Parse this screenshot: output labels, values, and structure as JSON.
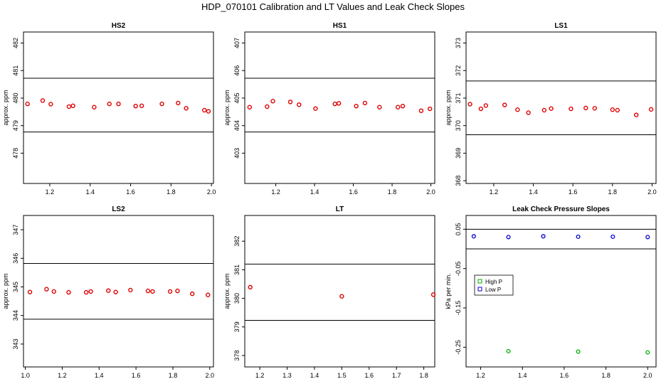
{
  "figure_title": "HDP_070101 Calibration and LT Values and Leak Check Slopes",
  "colors": {
    "points": "#e00000",
    "high_p": "#00b000",
    "low_p": "#0000cc",
    "lines": "#000000"
  },
  "chart_data": [
    {
      "type": "scatter",
      "title": "HS2",
      "ylabel": "approx. ppm",
      "xlim": [
        1.07,
        2.01
      ],
      "ylim": [
        476.9,
        482.4
      ],
      "xticks": [
        1.2,
        1.4,
        1.6,
        1.8,
        2.0
      ],
      "xtick_labels": [
        "1.2",
        "1.4",
        "1.6",
        "1.8",
        "2.0"
      ],
      "yticks": [
        478,
        479,
        480,
        481,
        482
      ],
      "ytick_labels": [
        "478",
        "479",
        "480",
        "481",
        "482"
      ],
      "hlines": [
        480.72,
        478.77
      ],
      "x": [
        1.09,
        1.165,
        1.205,
        1.295,
        1.315,
        1.42,
        1.495,
        1.54,
        1.625,
        1.655,
        1.755,
        1.835,
        1.875,
        1.965,
        1.985
      ],
      "y": [
        479.79,
        479.91,
        479.78,
        479.69,
        479.72,
        479.67,
        479.79,
        479.79,
        479.71,
        479.72,
        479.79,
        479.82,
        479.63,
        479.56,
        479.52
      ]
    },
    {
      "type": "scatter",
      "title": "HS1",
      "ylabel": "approx. ppm",
      "xlim": [
        1.04,
        2.02
      ],
      "ylim": [
        401.9,
        407.4
      ],
      "xticks": [
        1.2,
        1.4,
        1.6,
        1.8,
        2.0
      ],
      "xtick_labels": [
        "1.2",
        "1.4",
        "1.6",
        "1.8",
        "2.0"
      ],
      "yticks": [
        403,
        404,
        405,
        406,
        407
      ],
      "ytick_labels": [
        "403",
        "404",
        "405",
        "406",
        "407"
      ],
      "hlines": [
        405.72,
        403.77
      ],
      "x": [
        1.065,
        1.155,
        1.185,
        1.275,
        1.32,
        1.405,
        1.505,
        1.525,
        1.615,
        1.66,
        1.735,
        1.83,
        1.855,
        1.95,
        1.995
      ],
      "y": [
        404.67,
        404.69,
        404.89,
        404.86,
        404.76,
        404.62,
        404.79,
        404.81,
        404.71,
        404.82,
        404.67,
        404.67,
        404.71,
        404.54,
        404.61
      ]
    },
    {
      "type": "scatter",
      "title": "LS1",
      "ylabel": "approx. ppm",
      "xlim": [
        1.06,
        2.02
      ],
      "ylim": [
        367.9,
        373.4
      ],
      "xticks": [
        1.2,
        1.4,
        1.6,
        1.8,
        2.0
      ],
      "xtick_labels": [
        "1.2",
        "1.4",
        "1.6",
        "1.8",
        "2.0"
      ],
      "yticks": [
        368,
        369,
        370,
        371,
        372,
        373
      ],
      "ytick_labels": [
        "368",
        "369",
        "370",
        "371",
        "372",
        "373"
      ],
      "hlines": [
        371.62,
        369.67
      ],
      "x": [
        1.08,
        1.135,
        1.16,
        1.255,
        1.32,
        1.375,
        1.455,
        1.49,
        1.59,
        1.665,
        1.71,
        1.8,
        1.825,
        1.92,
        1.995
      ],
      "y": [
        370.78,
        370.61,
        370.73,
        370.75,
        370.58,
        370.47,
        370.56,
        370.62,
        370.61,
        370.64,
        370.63,
        370.58,
        370.56,
        370.39,
        370.59
      ]
    },
    {
      "type": "scatter",
      "title": "LS2",
      "ylabel": "approx. ppm",
      "xlim": [
        0.99,
        2.02
      ],
      "ylim": [
        342.2,
        347.5
      ],
      "xticks": [
        1.0,
        1.2,
        1.4,
        1.6,
        1.8,
        2.0
      ],
      "xtick_labels": [
        "1.0",
        "1.2",
        "1.4",
        "1.6",
        "1.8",
        "2.0"
      ],
      "yticks": [
        343,
        344,
        345,
        346,
        347
      ],
      "ytick_labels": [
        "343",
        "344",
        "345",
        "346",
        "347"
      ],
      "hlines": [
        345.82,
        343.87
      ],
      "x": [
        1.025,
        1.115,
        1.155,
        1.235,
        1.33,
        1.355,
        1.45,
        1.49,
        1.57,
        1.665,
        1.69,
        1.785,
        1.825,
        1.905,
        1.99
      ],
      "y": [
        344.82,
        344.92,
        344.84,
        344.81,
        344.81,
        344.84,
        344.87,
        344.82,
        344.89,
        344.86,
        344.84,
        344.84,
        344.86,
        344.76,
        344.72
      ]
    },
    {
      "type": "scatter",
      "title": "LT",
      "ylabel": "approx. ppm",
      "xlim": [
        1.145,
        1.84
      ],
      "ylim": [
        377.6,
        382.9
      ],
      "xticks": [
        1.2,
        1.3,
        1.4,
        1.5,
        1.6,
        1.7,
        1.8
      ],
      "xtick_labels": [
        "1.2",
        "1.3",
        "1.4",
        "1.5",
        "1.6",
        "1.7",
        "1.8"
      ],
      "yticks": [
        378,
        379,
        380,
        381,
        382
      ],
      "ytick_labels": [
        "378",
        "379",
        "380",
        "381",
        "382"
      ],
      "hlines": [
        381.2,
        379.23
      ],
      "x": [
        1.165,
        1.5,
        1.835
      ],
      "y": [
        380.39,
        380.07,
        380.13
      ]
    },
    {
      "type": "scatter",
      "title": "Leak Check Pressure Slopes",
      "ylabel": "kPa per min.",
      "xlim": [
        1.13,
        2.04
      ],
      "ylim": [
        -0.3,
        0.085
      ],
      "xticks": [
        1.2,
        1.4,
        1.6,
        1.8,
        2.0
      ],
      "xtick_labels": [
        "1.2",
        "1.4",
        "1.6",
        "1.8",
        "2.0"
      ],
      "yticks": [
        -0.25,
        -0.15,
        -0.05,
        0.05
      ],
      "ytick_labels": [
        "-0.25",
        "-0.15",
        "-0.05",
        "0.05"
      ],
      "hlines": [
        0.05,
        0.0
      ],
      "legend": {
        "position": "upper-left",
        "entries": [
          "High P",
          "Low P"
        ]
      },
      "series": [
        {
          "name": "High P",
          "x": [
            1.333,
            1.667,
            2.0
          ],
          "y": [
            -0.26,
            -0.261,
            -0.263
          ]
        },
        {
          "name": "Low P",
          "x": [
            1.167,
            1.333,
            1.5,
            1.667,
            1.833,
            2.0
          ],
          "y": [
            0.032,
            0.03,
            0.032,
            0.031,
            0.031,
            0.03
          ]
        }
      ]
    }
  ]
}
